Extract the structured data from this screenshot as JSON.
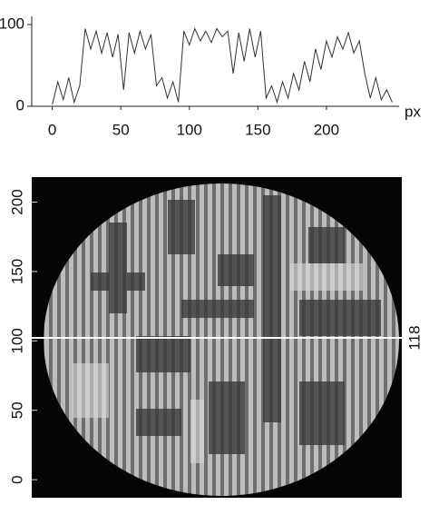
{
  "chart_data": [
    {
      "type": "line",
      "xlabel": "px",
      "x": [
        0,
        4,
        8,
        12,
        16,
        20,
        24,
        28,
        32,
        36,
        40,
        44,
        48,
        52,
        56,
        60,
        64,
        68,
        72,
        76,
        80,
        84,
        88,
        92,
        96,
        100,
        104,
        108,
        112,
        116,
        120,
        124,
        128,
        132,
        136,
        140,
        144,
        148,
        152,
        156,
        160,
        164,
        168,
        172,
        176,
        180,
        184,
        188,
        192,
        196,
        200,
        204,
        208,
        212,
        216,
        220,
        224,
        228,
        232,
        236,
        240,
        244,
        248
      ],
      "series": [
        {
          "color": "#333333",
          "values": [
            2,
            30,
            8,
            35,
            5,
            25,
            95,
            70,
            92,
            65,
            90,
            60,
            88,
            20,
            90,
            65,
            92,
            70,
            88,
            25,
            35,
            10,
            30,
            5,
            92,
            75,
            95,
            80,
            92,
            78,
            95,
            85,
            92,
            40,
            90,
            55,
            95,
            60,
            92,
            10,
            25,
            5,
            30,
            10,
            40,
            20,
            55,
            30,
            70,
            45,
            80,
            60,
            85,
            70,
            90,
            65,
            80,
            40,
            10,
            35,
            8,
            20,
            5
          ]
        }
      ],
      "xlim": [
        -15,
        253
      ],
      "ylim": [
        0,
        100
      ],
      "xticks": [
        0,
        50,
        100,
        150,
        200
      ],
      "yticks": [
        0,
        100
      ]
    },
    {
      "type": "image",
      "ylim": [
        -13,
        218
      ],
      "yticks": [
        0,
        50,
        100,
        150,
        200
      ],
      "annotation": "118"
    }
  ]
}
